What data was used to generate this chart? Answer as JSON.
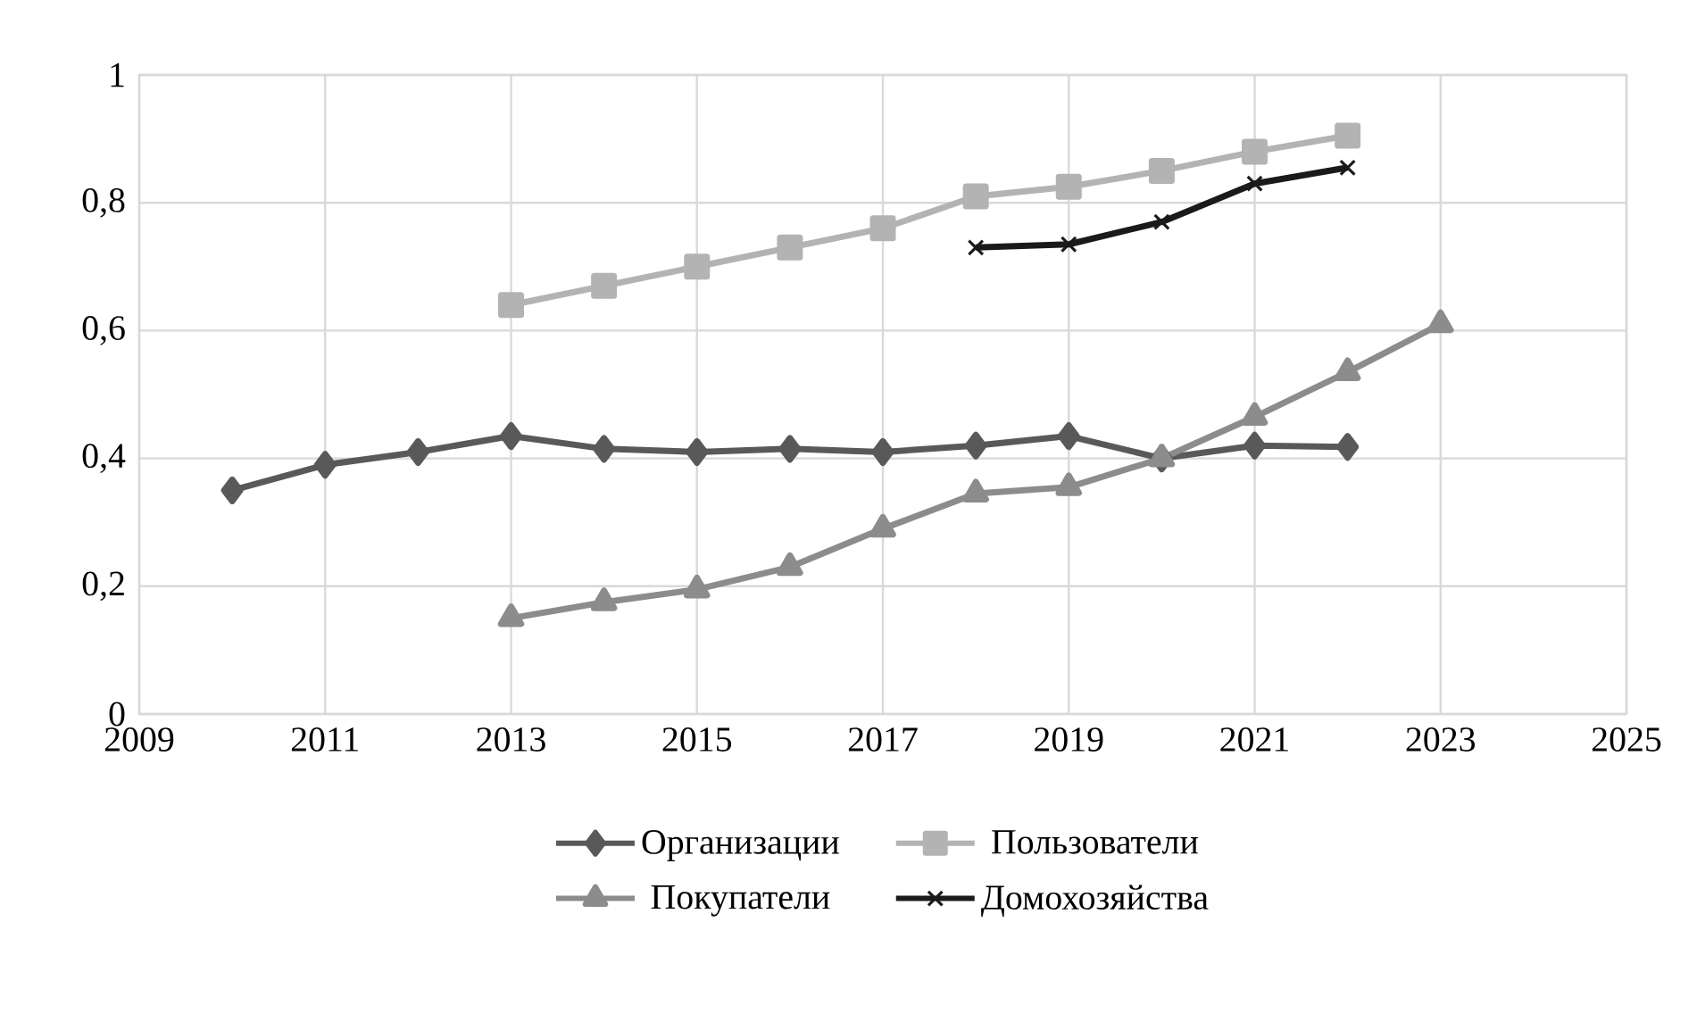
{
  "chart_data": {
    "type": "line",
    "xlim": [
      2009,
      2025
    ],
    "ylim": [
      0,
      1
    ],
    "xticks": [
      2009,
      2011,
      2013,
      2015,
      2017,
      2019,
      2021,
      2023,
      2025
    ],
    "yticks": [
      0,
      {
        "value": 0.2,
        "label": "0,2"
      },
      {
        "value": 0.4,
        "label": "0,4"
      },
      {
        "value": 0.6,
        "label": "0,6"
      },
      {
        "value": 0.8,
        "label": "0,8"
      },
      1
    ],
    "grid": true,
    "legend": "bottom",
    "series": [
      {
        "name": "Организации",
        "color": "#595959",
        "marker": "diamond",
        "x": [
          2010,
          2011,
          2012,
          2013,
          2014,
          2015,
          2016,
          2017,
          2018,
          2019,
          2020,
          2021,
          2022
        ],
        "values": [
          0.35,
          0.39,
          0.41,
          0.435,
          0.415,
          0.41,
          0.415,
          0.41,
          0.42,
          0.435,
          0.4,
          0.42,
          0.418
        ]
      },
      {
        "name": "Пользователи",
        "color": "#b3b3b3",
        "marker": "square",
        "x": [
          2013,
          2014,
          2015,
          2016,
          2017,
          2018,
          2019,
          2020,
          2021,
          2022
        ],
        "values": [
          0.64,
          0.67,
          0.7,
          0.73,
          0.76,
          0.81,
          0.825,
          0.85,
          0.88,
          0.905
        ]
      },
      {
        "name": "Покупатели",
        "color": "#8c8c8c",
        "marker": "triangle",
        "x": [
          2013,
          2014,
          2015,
          2016,
          2017,
          2018,
          2019,
          2020,
          2021,
          2022,
          2023
        ],
        "values": [
          0.15,
          0.175,
          0.195,
          0.23,
          0.29,
          0.345,
          0.355,
          0.4,
          0.465,
          0.535,
          0.61
        ]
      },
      {
        "name": "Домохозяйства",
        "color": "#1a1a1a",
        "marker": "cross",
        "x": [
          2018,
          2019,
          2020,
          2021,
          2022
        ],
        "values": [
          0.73,
          0.735,
          0.77,
          0.83,
          0.855
        ]
      }
    ]
  }
}
